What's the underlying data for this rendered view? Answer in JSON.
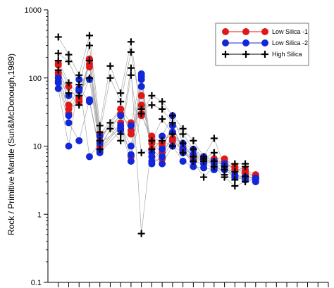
{
  "chart_data": {
    "type": "line",
    "title": "",
    "xlabel": "",
    "ylabel": "Rock / Primitive Mantle (Sun&McDonough,1989)",
    "yscale": "log",
    "ylim": [
      0.1,
      1000
    ],
    "yticks": [
      {
        "value": 0.1,
        "label": "0.1"
      },
      {
        "value": 1,
        "label": "1"
      },
      {
        "value": 10,
        "label": "10"
      },
      {
        "value": 100,
        "label": "100"
      },
      {
        "value": 1000,
        "label": "1000"
      }
    ],
    "xlim": [
      0,
      27
    ],
    "x_tick_count": 27,
    "x_tick_labels": [],
    "grid": false,
    "legend_position": "top-right",
    "series": [
      {
        "name": "Low Silica -1",
        "color": "#e01818",
        "marker": "circle",
        "samples": [
          [
            155,
            75,
            45,
            185,
            12,
            null,
            35,
            22,
            28,
            14,
            11,
            16,
            9.5,
            7.5,
            7,
            6.5,
            6.5,
            5,
            4.5,
            3.8
          ],
          [
            165,
            40,
            70,
            145,
            10,
            null,
            30,
            17,
            55,
            9,
            6.5,
            12,
            9,
            6,
            5.5,
            6,
            6,
            4.5,
            4.2,
            3.6
          ],
          [
            120,
            30,
            50,
            190,
            15,
            null,
            35,
            15,
            40,
            12,
            10,
            20,
            8.5,
            7,
            6.5,
            6,
            5.5,
            4.8,
            4,
            3.5
          ],
          [
            110,
            35,
            45,
            160,
            9,
            null,
            22,
            7,
            30,
            11,
            8,
            13,
            8,
            6.5,
            6,
            5.5,
            5.5,
            4.5,
            3.7,
            3.4
          ]
        ]
      },
      {
        "name": "Low Silica -2",
        "color": "#1228d8",
        "marker": "circle",
        "samples": [
          [
            100,
            55,
            65,
            95,
            14,
            null,
            28,
            20,
            115,
            8,
            14,
            28,
            11,
            9,
            7,
            6,
            5.5,
            3.8,
            3.5,
            3.4
          ],
          [
            85,
            22,
            12,
            48,
            8.5,
            null,
            20,
            10,
            105,
            6,
            9,
            20,
            9,
            7.5,
            6.5,
            5.5,
            5,
            3.6,
            3.3,
            3.2
          ],
          [
            70,
            10,
            95,
            7,
            11,
            null,
            18,
            7.5,
            95,
            5.5,
            7,
            16,
            8,
            6,
            5.5,
            4.8,
            4.5,
            3.5,
            3.2,
            3.0
          ],
          [
            90,
            28,
            70,
            45,
            8,
            null,
            17,
            6,
            75,
            7,
            5.5,
            10,
            6,
            5,
            4.8,
            4.5,
            4.5,
            3.7,
            3.5,
            3.3
          ]
        ]
      },
      {
        "name": "High Silica",
        "color": "#000000",
        "marker": "plus",
        "samples": [
          [
            400,
            220,
            110,
            420,
            20,
            150,
            60,
            340,
            30,
            55,
            45,
            28,
            18,
            12,
            7,
            13,
            5,
            5.5,
            5.5
          ],
          [
            230,
            175,
            80,
            300,
            16,
            100,
            45,
            240,
            35,
            40,
            35,
            22,
            15,
            9,
            6.5,
            8,
            4.5,
            4.2,
            5
          ],
          [
            180,
            85,
            55,
            180,
            12,
            22,
            15,
            140,
            0.52,
            12,
            25,
            15,
            11,
            7,
            6,
            6,
            3.8,
            3.2,
            3.6
          ],
          [
            130,
            60,
            40,
            100,
            9,
            18,
            12,
            110,
            8,
            9,
            12,
            10,
            8,
            6,
            3.5,
            5,
            3.5,
            2.6,
            3.0
          ]
        ]
      }
    ]
  }
}
